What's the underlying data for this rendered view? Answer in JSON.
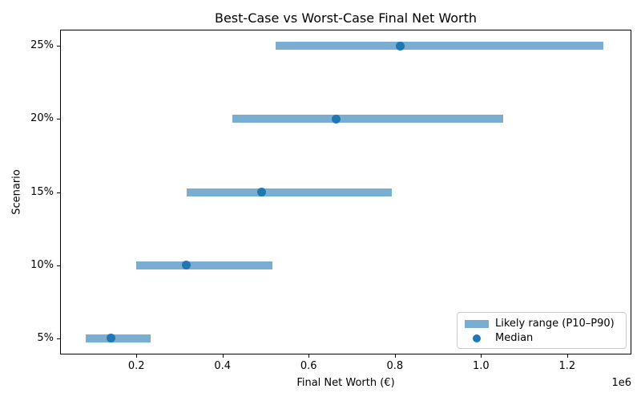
{
  "chart_data": {
    "type": "bar",
    "orientation": "horizontal",
    "title": "Best-Case vs Worst-Case Final Net Worth",
    "xlabel": "Final Net Worth (€)",
    "ylabel": "Scenario",
    "categories": [
      "5%",
      "10%",
      "15%",
      "20%",
      "25%"
    ],
    "series": [
      {
        "name": "Likely range (P10–P90)",
        "type": "range",
        "p10": [
          83000,
          200000,
          317000,
          423000,
          523000
        ],
        "p90": [
          234000,
          516000,
          793000,
          1051000,
          1284000
        ]
      },
      {
        "name": "Median",
        "type": "scatter",
        "values": [
          142000,
          315000,
          490000,
          663000,
          812000
        ]
      }
    ],
    "x_ticks": [
      200000,
      400000,
      600000,
      800000,
      1000000,
      1200000
    ],
    "x_tick_labels": [
      "0.2",
      "0.4",
      "0.6",
      "0.8",
      "1.0",
      "1.2"
    ],
    "x_offset_label": "1e6",
    "xlim": [
      23000,
      1349000
    ],
    "ylim": [
      -0.22,
      4.22
    ],
    "grid": false,
    "legend_position": "lower right",
    "colors": {
      "range_bar": "#79add2",
      "median_dot": "#1f77b4"
    }
  },
  "legend": {
    "items": [
      {
        "label": "Likely range (P10–P90)",
        "marker": "bar"
      },
      {
        "label": "Median",
        "marker": "dot"
      }
    ]
  }
}
